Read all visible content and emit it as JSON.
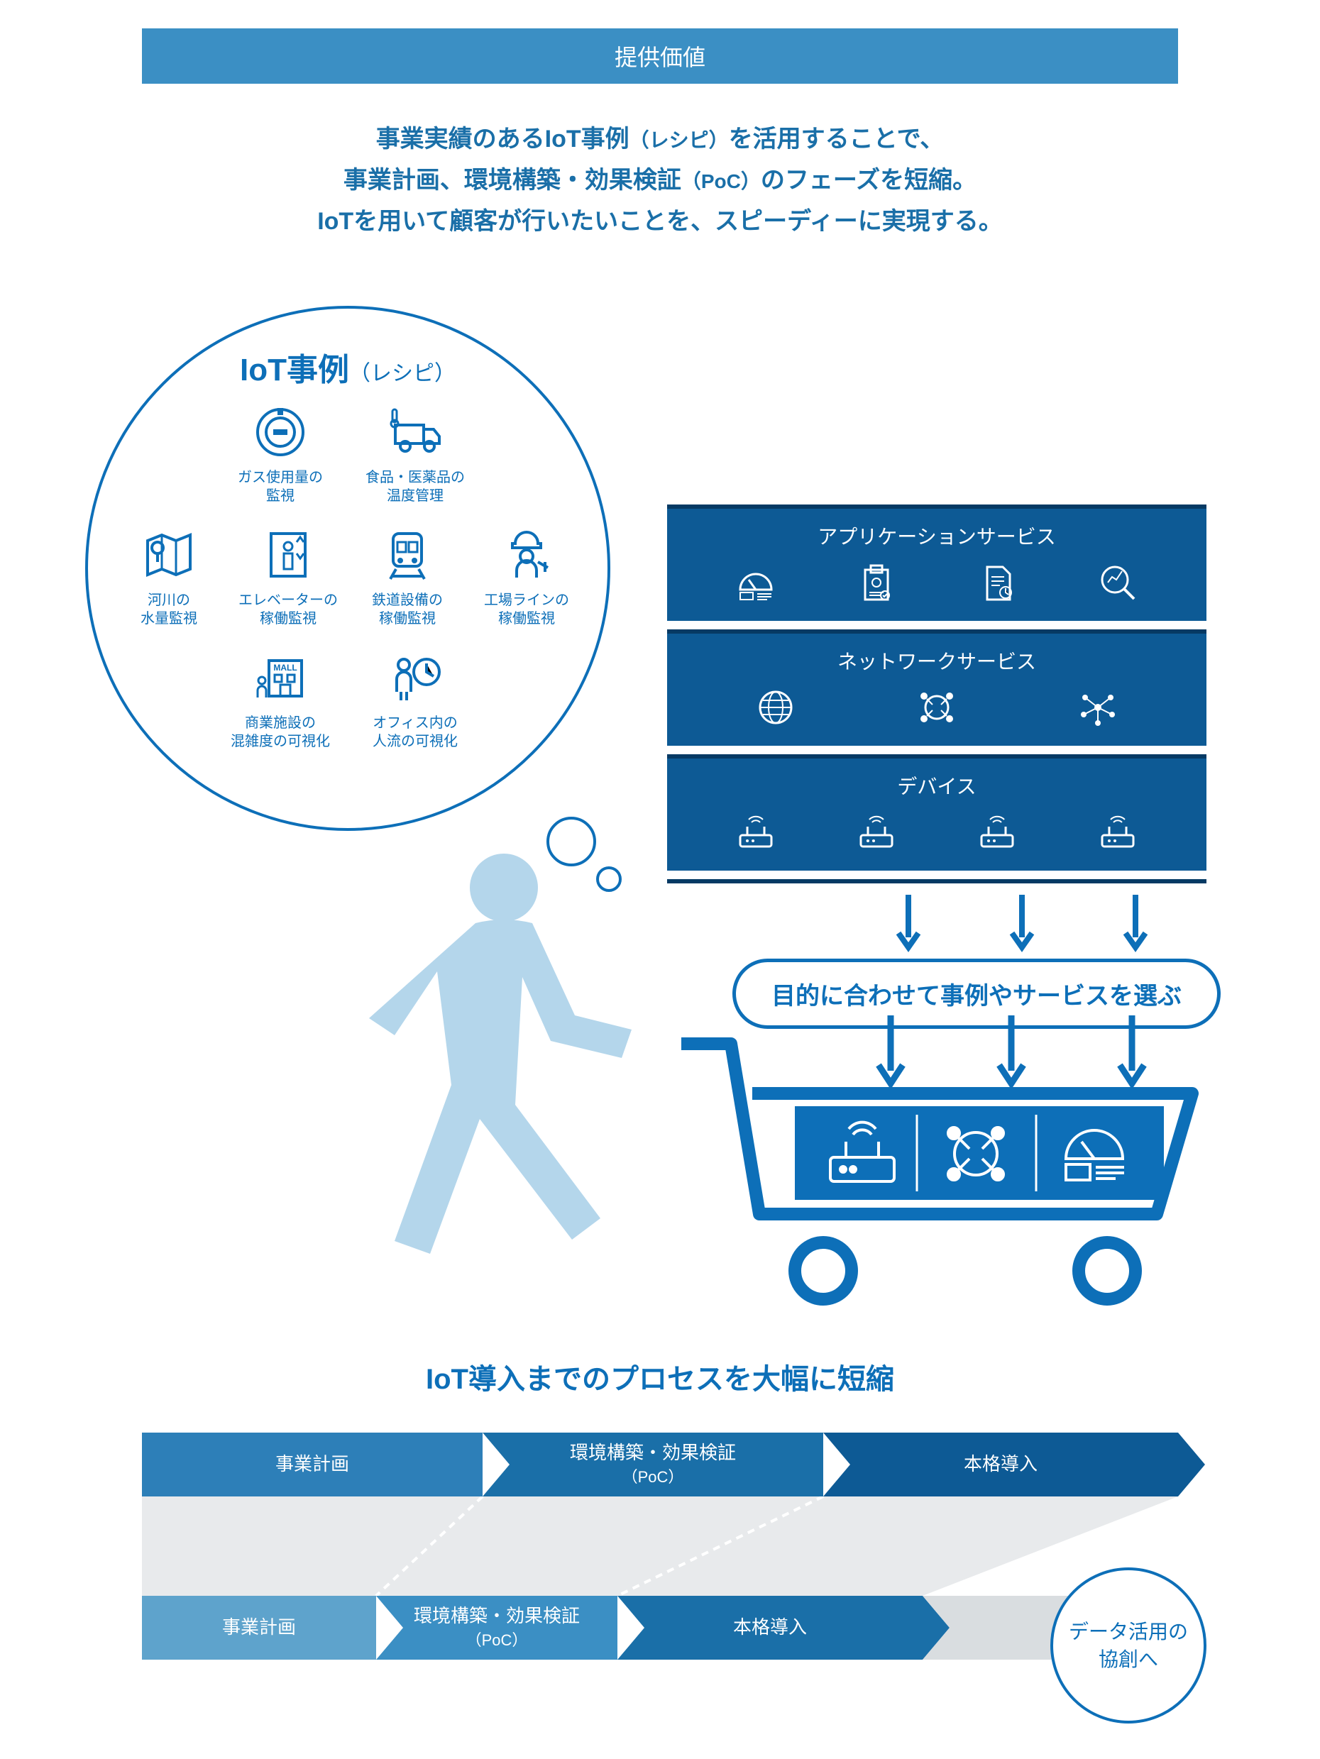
{
  "colors": {
    "primary": "#0d6fb8",
    "primaryDark": "#0d5a95",
    "primaryDarker": "#063a64",
    "banner": "#3b8fc4",
    "personLight": "#b4d6eb",
    "gray": "#d9dde0",
    "grayMid": "#bcc4ca",
    "flow1a": "#2d7fb8",
    "flow1b": "#1a6fa8",
    "flow1c": "#0d5a95",
    "flow2a": "#5ea3cc",
    "flow2b": "#3b8fc4",
    "flow2c": "#1a6fa8"
  },
  "banner": "提供価値",
  "intro": {
    "line1a": "事業実績のあるIoT事例",
    "line1b": "（レシピ）",
    "line1c": "を活用することで、",
    "line2a": "事業計画、環境構築・効果検証",
    "line2b": "（PoC）",
    "line2c": "のフェーズを短縮。",
    "line3": "IoTを用いて顧客が行いたいことを、スピーディーに実現する。"
  },
  "bubble": {
    "title": "IoT事例",
    "subtitle": "（レシピ）",
    "recipes": [
      {
        "icon": "meter",
        "label": "ガス使用量の\n監視"
      },
      {
        "icon": "truck",
        "label": "食品・医薬品の\n温度管理"
      },
      {
        "icon": "map",
        "label": "河川の\n水量監視"
      },
      {
        "icon": "elevator",
        "label": "エレベーターの\n稼働監視"
      },
      {
        "icon": "train",
        "label": "鉄道設備の\n稼働監視"
      },
      {
        "icon": "worker",
        "label": "工場ラインの\n稼働監視"
      },
      {
        "icon": "mall",
        "label": "商業施設の\n混雑度の可視化"
      },
      {
        "icon": "office",
        "label": "オフィス内の\n人流の可視化"
      }
    ]
  },
  "stack": [
    {
      "title": "アプリケーションサービス",
      "icons": [
        "dashboard",
        "clipboard",
        "document",
        "search-chart"
      ]
    },
    {
      "title": "ネットワークサービス",
      "icons": [
        "globe",
        "globe-net",
        "mesh"
      ]
    },
    {
      "title": "デバイス",
      "icons": [
        "router",
        "router",
        "router",
        "router"
      ]
    }
  ],
  "pill": "目的に合わせて事例やサービスを選ぶ",
  "cartIcons": [
    "router",
    "globe-net",
    "dashboard"
  ],
  "processTitle": "IoT導入までのプロセスを大幅に短縮",
  "flow1": [
    {
      "label": "事業計画",
      "sub": ""
    },
    {
      "label": "環境構築・効果検証",
      "sub": "（PoC）"
    },
    {
      "label": "本格導入",
      "sub": ""
    }
  ],
  "flow2": [
    {
      "label": "事業計画",
      "sub": ""
    },
    {
      "label": "環境構築・効果検証",
      "sub": "（PoC）"
    },
    {
      "label": "本格導入",
      "sub": ""
    }
  ],
  "circle": "データ活用の\n協創へ"
}
